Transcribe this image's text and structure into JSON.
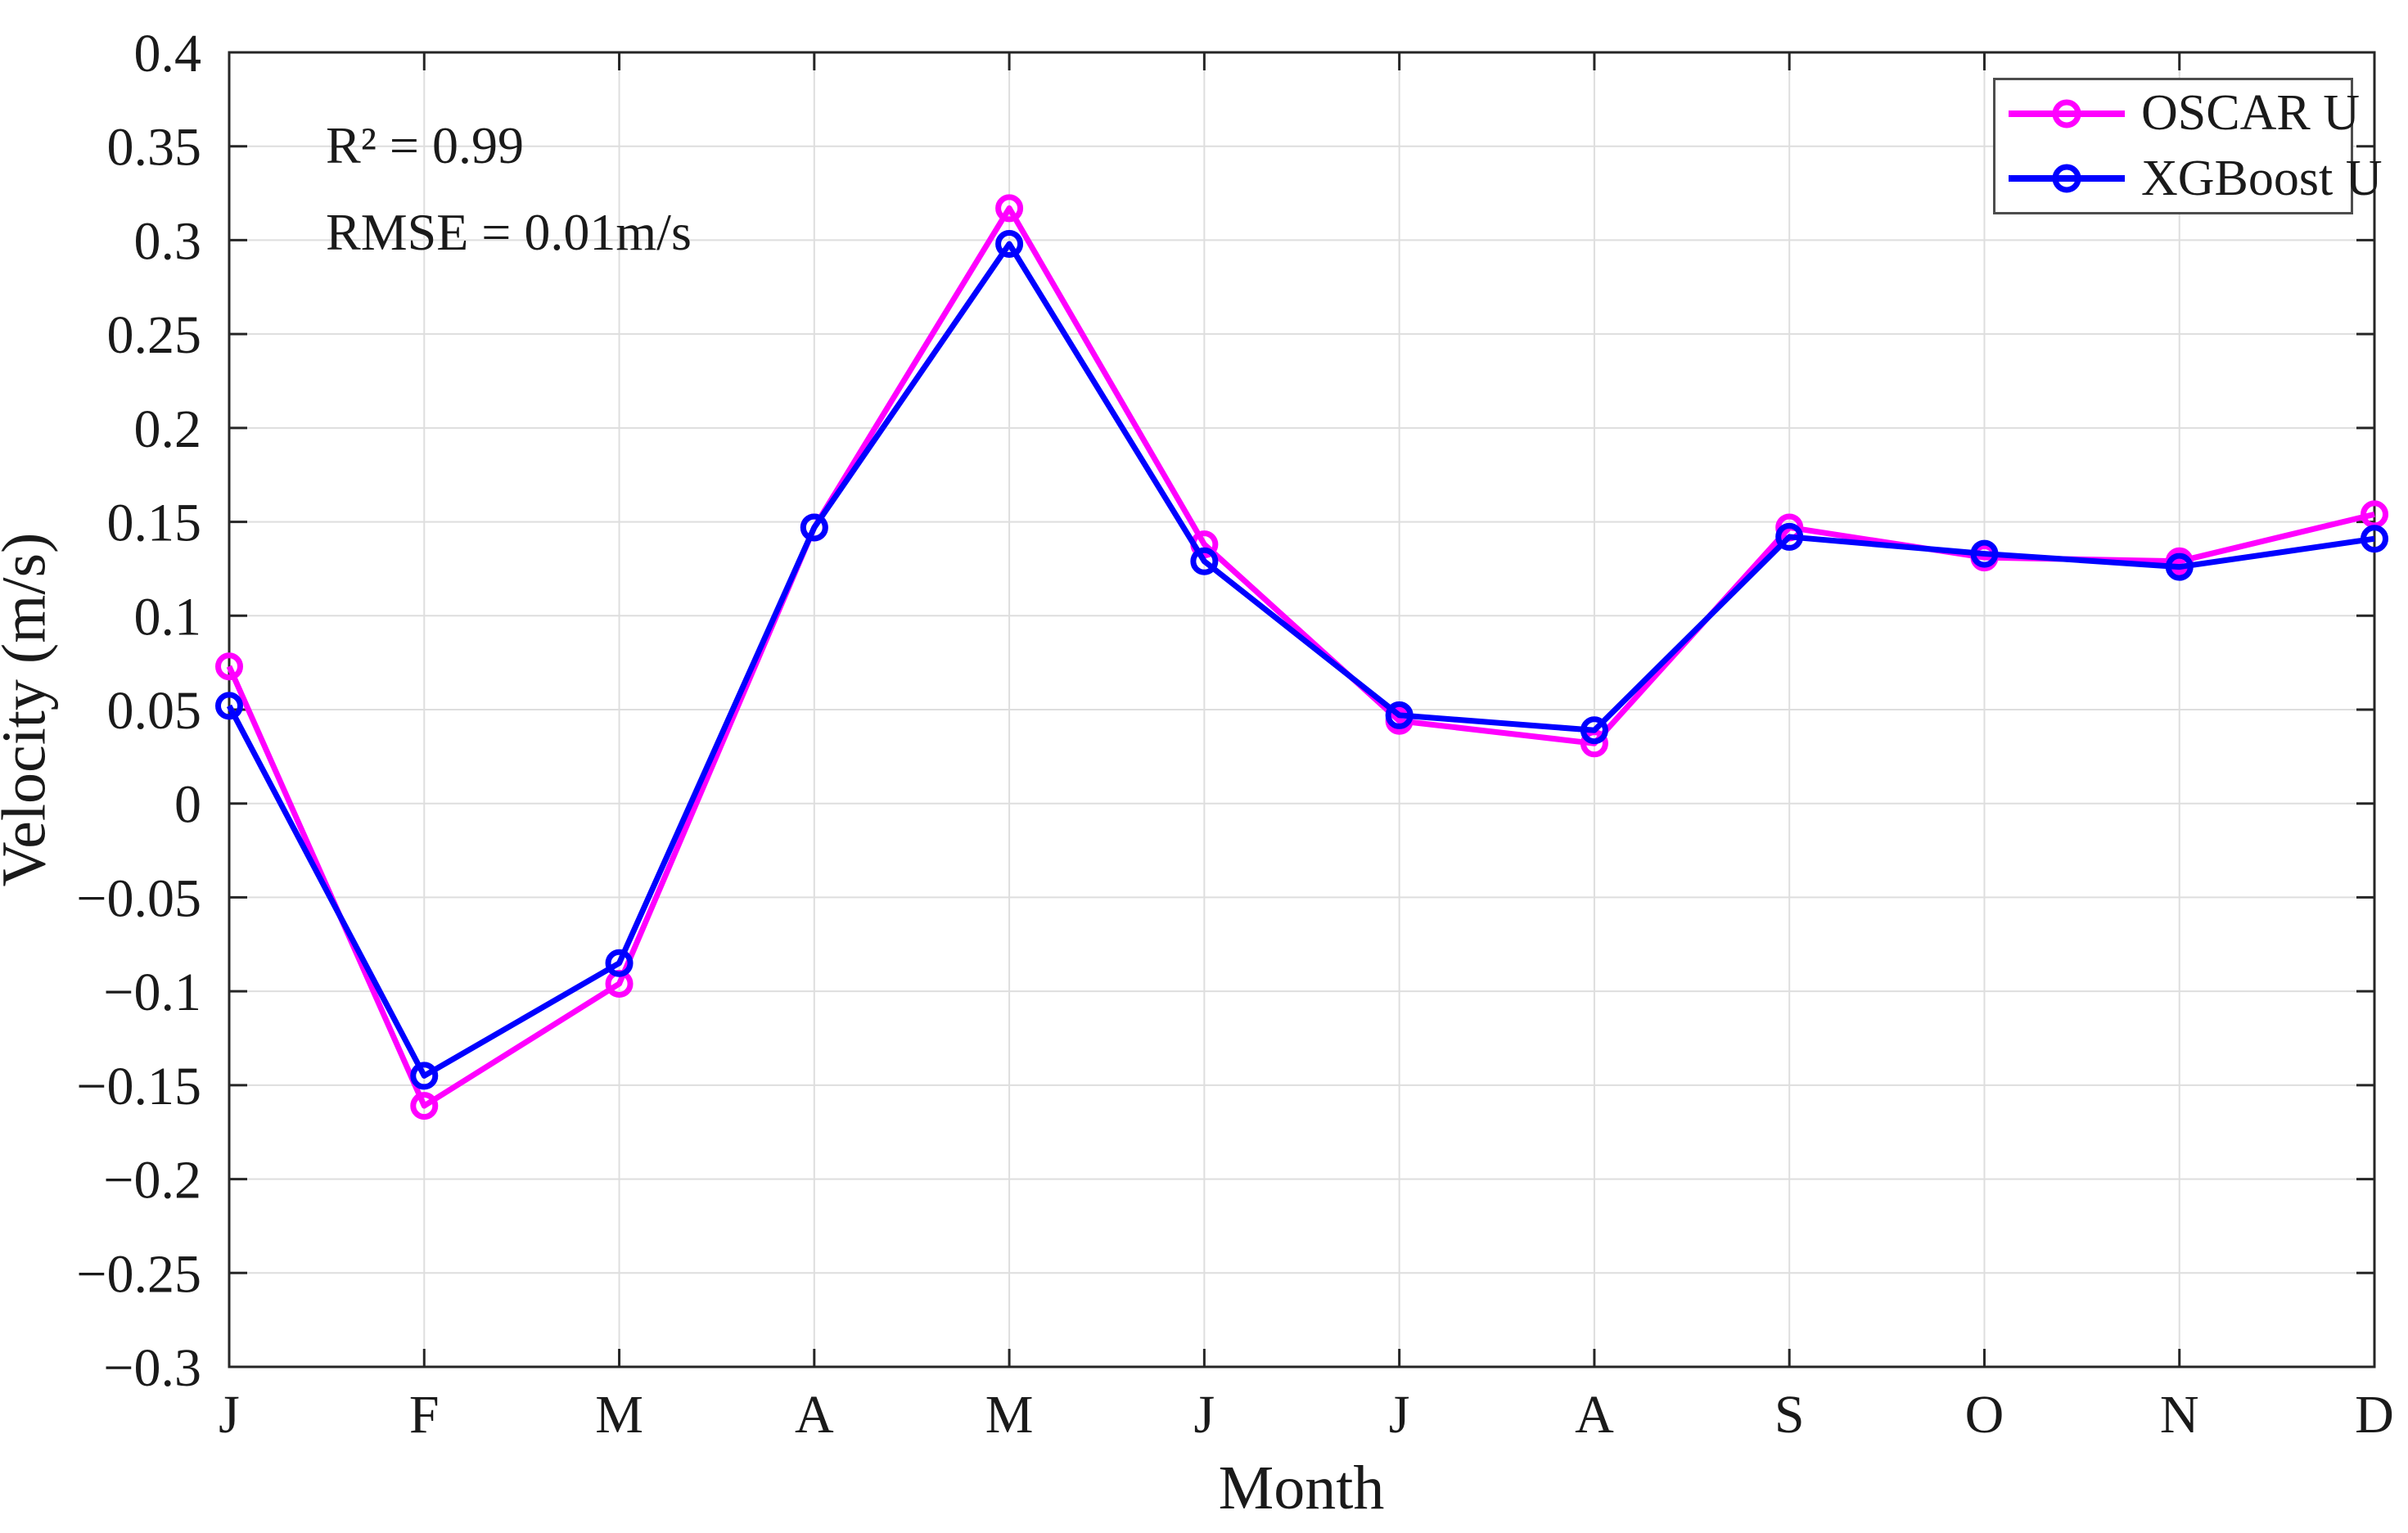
{
  "chart_data": {
    "type": "line",
    "categories": [
      "J",
      "F",
      "M",
      "A",
      "M",
      "J",
      "J",
      "A",
      "S",
      "O",
      "N",
      "D"
    ],
    "series": [
      {
        "name": "OSCAR U",
        "color": "#FF00FF",
        "values": [
          0.073,
          -0.161,
          -0.096,
          0.147,
          0.317,
          0.138,
          0.044,
          0.032,
          0.147,
          0.131,
          0.129,
          0.154
        ]
      },
      {
        "name": "XGBoost U",
        "color": "#0000FF",
        "values": [
          0.052,
          -0.145,
          -0.085,
          0.147,
          0.298,
          0.129,
          0.047,
          0.039,
          0.142,
          0.133,
          0.126,
          0.141
        ]
      }
    ],
    "title": "",
    "xlabel": "Month",
    "ylabel": "Velocity (m/s)",
    "ylim": [
      -0.3,
      0.4
    ],
    "ytick_step": 0.05,
    "ytick_labels": [
      "0.4",
      "0.35",
      "0.3",
      "0.25",
      "0.2",
      "0.15",
      "0.1",
      "0.05",
      "0",
      "−0.05",
      "−0.1",
      "−0.15",
      "−0.2",
      "−0.25",
      "−0.3"
    ],
    "grid": true,
    "legend_position": "top-right"
  },
  "annotation": {
    "r2": "R² = 0.99",
    "rmse": "RMSE = 0.01m/s"
  },
  "axes": {
    "xlabel": "Month",
    "ylabel": "Velocity (m/s)"
  },
  "colors": {
    "background": "#FFFFFF",
    "spine": "#262626",
    "grid": "#DEDEDE",
    "text": "#1A1A1A",
    "oscar": "#FF00FF",
    "xgboost": "#0000FF"
  }
}
